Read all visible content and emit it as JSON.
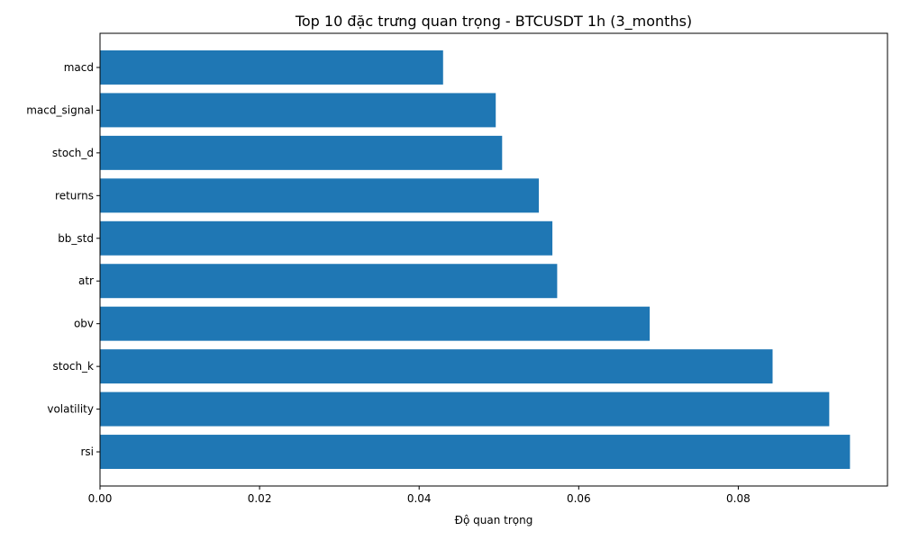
{
  "chart_data": {
    "type": "bar",
    "orientation": "horizontal",
    "title": "Top 10 đặc trưng quan trọng - BTCUSDT 1h (3_months)",
    "xlabel": "Độ quan trọng",
    "ylabel": "",
    "categories": [
      "macd",
      "macd_signal",
      "stoch_d",
      "returns",
      "bb_std",
      "atr",
      "obv",
      "stoch_k",
      "volatility",
      "rsi"
    ],
    "values": [
      0.043,
      0.0496,
      0.0504,
      0.055,
      0.0567,
      0.0573,
      0.0689,
      0.0843,
      0.0914,
      0.094
    ],
    "xlim": [
      0,
      0.0987
    ],
    "xticks": [
      "0.00",
      "0.02",
      "0.04",
      "0.06",
      "0.08"
    ],
    "bar_color": "#1f77b4",
    "grid": false,
    "legend": "none"
  }
}
